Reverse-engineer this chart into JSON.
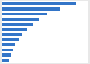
{
  "values": [
    38,
    30,
    23,
    19,
    16,
    13,
    10.5,
    8.5,
    7,
    5.5,
    4.5,
    3.5
  ],
  "bar_color": "#3375c8",
  "background_color": "#e8e8e8",
  "plot_background": "#ffffff",
  "xlim": [
    0,
    44
  ],
  "bar_height": 0.62,
  "grid_color": "#dddddd",
  "grid_linewidth": 0.5
}
